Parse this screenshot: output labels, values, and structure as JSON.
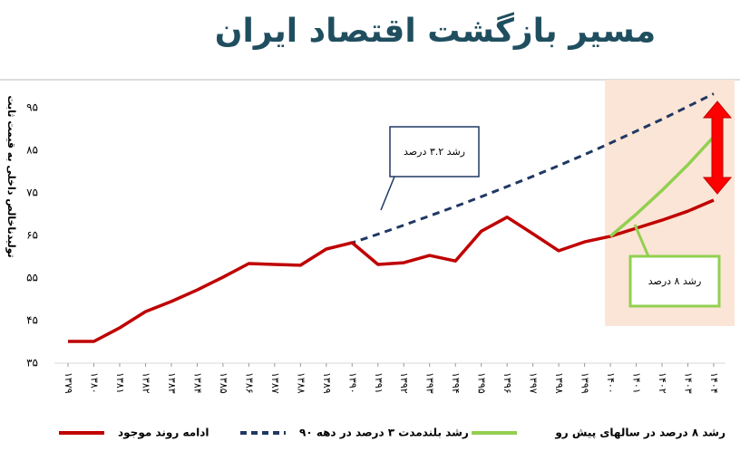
{
  "chart_data": {
    "type": "line",
    "title": "مسیر بازگشت اقتصاد ایران",
    "y_label": "تولیدناخالص داخلی به قیمت ثابت",
    "categories": [
      "۱۳۷۹",
      "۱۳۸۰",
      "۱۳۸۱",
      "۱۳۸۲",
      "۱۳۸۳",
      "۱۳۸۴",
      "۱۳۸۵",
      "۱۳۸۶",
      "۱۳۸۷",
      "۱۳۸۸",
      "۱۳۸۹",
      "۱۳۹۰",
      "۱۳۹۱",
      "۱۳۹۲",
      "۱۳۹۳",
      "۱۳۹۴",
      "۱۳۹۵",
      "۱۳۹۶",
      "۱۳۹۷",
      "۱۳۹۸",
      "۱۳۹۹",
      "۱۴۰۰",
      "۱۴۰۱",
      "۱۴۰۲",
      "۱۴۰۳",
      "۱۴۰۴"
    ],
    "series": [
      {
        "name": "رشد بلندمدت ۳ درصد در دهه ۹۰",
        "color": "#1f3864",
        "dashed": true,
        "values": [
          40.1,
          40.1,
          43.3,
          47.1,
          49.5,
          52.2,
          55.2,
          58.4,
          58.2,
          58.0,
          61.8,
          63.3,
          65.3,
          67.4,
          69.6,
          71.8,
          74.1,
          76.5,
          78.9,
          81.4,
          84.0,
          86.7,
          89.5,
          92.3,
          95.3,
          98.3
        ]
      },
      {
        "name": "ادامه روند موجود",
        "color": "#c00000",
        "values": [
          40.1,
          40.1,
          43.3,
          47.1,
          49.5,
          52.2,
          55.2,
          58.4,
          58.2,
          58.0,
          61.8,
          63.3,
          58.2,
          58.6,
          60.3,
          59.0,
          66.0,
          69.3,
          65.4,
          61.4,
          63.5,
          64.8,
          66.7,
          68.6,
          70.7,
          73.3
        ]
      },
      {
        "name": "رشد ۸ درصد در سالهای پیش رو",
        "color": "#92d050",
        "values": [
          null,
          null,
          null,
          null,
          null,
          null,
          null,
          null,
          null,
          null,
          null,
          null,
          null,
          null,
          null,
          null,
          null,
          null,
          null,
          null,
          null,
          64.8,
          70.0,
          75.6,
          81.6,
          88.2
        ]
      }
    ],
    "ylim": [
      35,
      100
    ],
    "yticks": [
      {
        "value": 35,
        "label": "۳۵"
      },
      {
        "value": 45,
        "label": "۴۵"
      },
      {
        "value": 55,
        "label": "۵۵"
      },
      {
        "value": 65,
        "label": "۶۵"
      },
      {
        "value": 75,
        "label": "۷۵"
      },
      {
        "value": 85,
        "label": "۸۵"
      },
      {
        "value": 95,
        "label": "۹۵"
      }
    ],
    "annotations": [
      {
        "text": "رشد ۳.۲ درصد"
      },
      {
        "text": "رشد ۸ درصد"
      }
    ],
    "legend": "bottom"
  }
}
